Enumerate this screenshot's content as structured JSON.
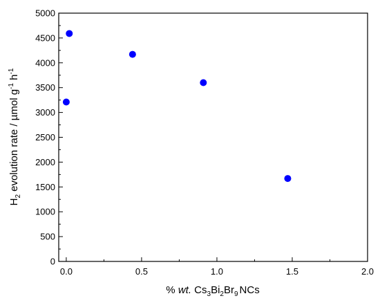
{
  "chart_data": {
    "type": "scatter",
    "title": "",
    "xlabel": {
      "prefix": "% ",
      "italic": "wt.",
      "space": " ",
      "parts": [
        "Cs",
        "3",
        "Bi",
        "2",
        "Br",
        "9",
        "NCs"
      ]
    },
    "ylabel": {
      "parts": [
        "H",
        "2",
        " evolution rate / µmol g",
        "-1",
        " h",
        "-1"
      ]
    },
    "xlim": [
      -0.05,
      2.0
    ],
    "ylim": [
      0,
      5000
    ],
    "x_ticks": [
      0.0,
      0.5,
      1.0,
      1.5,
      2.0
    ],
    "x_tick_labels": [
      "0.0",
      "0.5",
      "1.0",
      "1.5",
      "2.0"
    ],
    "y_ticks": [
      0,
      500,
      1000,
      1500,
      2000,
      2500,
      3000,
      3500,
      4000,
      4500,
      5000
    ],
    "y_tick_labels": [
      "0",
      "500",
      "1000",
      "1500",
      "2000",
      "2500",
      "3000",
      "3500",
      "4000",
      "4500",
      "5000"
    ],
    "grid": false,
    "legend": "none",
    "marker_color": "#0000ff",
    "points": [
      {
        "x": 0.0,
        "y": 3210
      },
      {
        "x": 0.02,
        "y": 4590
      },
      {
        "x": 0.44,
        "y": 4170
      },
      {
        "x": 0.91,
        "y": 3600
      },
      {
        "x": 1.47,
        "y": 1670
      }
    ]
  }
}
